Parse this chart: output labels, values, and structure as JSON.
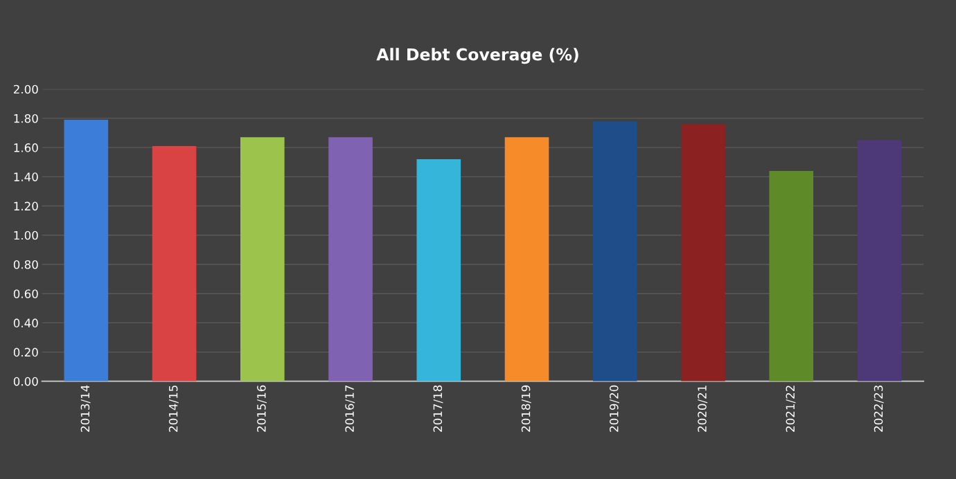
{
  "chart_data": {
    "type": "bar",
    "title": "All Debt Coverage (%)",
    "categories": [
      "2013/14",
      "2014/15",
      "2015/16",
      "2016/17",
      "2017/18",
      "2018/19",
      "2019/20",
      "2020/21",
      "2021/22",
      "2022/23"
    ],
    "values": [
      1.79,
      1.61,
      1.67,
      1.67,
      1.52,
      1.67,
      1.78,
      1.76,
      1.44,
      1.65
    ],
    "colors": [
      "#3b7dd8",
      "#d94343",
      "#9cc34b",
      "#8062b3",
      "#35b5d9",
      "#f68b2a",
      "#1f4d89",
      "#8b2121",
      "#5e8a27",
      "#4d3878"
    ],
    "ylim": [
      0,
      2
    ],
    "yticks": [
      {
        "value": 0,
        "label": "0.00"
      },
      {
        "value": 0.2,
        "label": "0.20"
      },
      {
        "value": 0.4,
        "label": "0.40"
      },
      {
        "value": 0.6,
        "label": "0.60"
      },
      {
        "value": 0.8,
        "label": "0.80"
      },
      {
        "value": 1.0,
        "label": "1.00"
      },
      {
        "value": 1.2,
        "label": "1.20"
      },
      {
        "value": 1.4,
        "label": "1.40"
      },
      {
        "value": 1.6,
        "label": "1.60"
      },
      {
        "value": 1.8,
        "label": "1.80"
      },
      {
        "value": 2.0,
        "label": "2.00"
      }
    ],
    "grid": "y"
  }
}
